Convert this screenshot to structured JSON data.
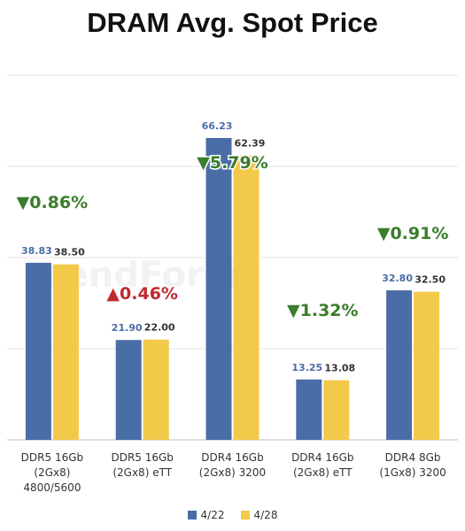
{
  "title": "DRAM Avg. Spot Price",
  "watermark_text": "TrendForce",
  "chart_data": {
    "type": "bar",
    "title": "DRAM Avg. Spot Price",
    "categories": [
      [
        "DDR5 16Gb",
        "(2Gx8)",
        "4800/5600"
      ],
      [
        "DDR5 16Gb",
        "(2Gx8) eTT"
      ],
      [
        "DDR4 16Gb",
        "(2Gx8) 3200"
      ],
      [
        "DDR4 16Gb",
        "(2Gx8) eTT"
      ],
      [
        "DDR4 8Gb",
        "(1Gx8) 3200"
      ]
    ],
    "series": [
      {
        "name": "4/22",
        "color": "#4a6da7",
        "values": [
          38.83,
          21.9,
          66.23,
          13.25,
          32.8
        ],
        "labels": [
          "38.83",
          "21.90",
          "66.23",
          "13.25",
          "32.80"
        ]
      },
      {
        "name": "4/28",
        "color": "#f3c94a",
        "values": [
          38.5,
          22.0,
          62.39,
          13.08,
          32.5
        ],
        "labels": [
          "38.50",
          "22.00",
          "62.39",
          "13.08",
          "32.50"
        ]
      }
    ],
    "changes": [
      {
        "text": "▼0.86%",
        "direction": "down"
      },
      {
        "text": "▲0.46%",
        "direction": "up"
      },
      {
        "text": "▼5.79%",
        "direction": "down"
      },
      {
        "text": "▼1.32%",
        "direction": "down"
      },
      {
        "text": "▼0.91%",
        "direction": "down"
      }
    ],
    "ylim": [
      0,
      80
    ],
    "yticks": [
      0,
      20,
      40,
      60,
      80
    ],
    "grid": true,
    "legend_position": "bottom",
    "colors": {
      "down": "#3a7d2c",
      "up": "#c0282d",
      "value_label_4_22": "#4a6da7",
      "value_label_4_28": "#333333"
    }
  }
}
